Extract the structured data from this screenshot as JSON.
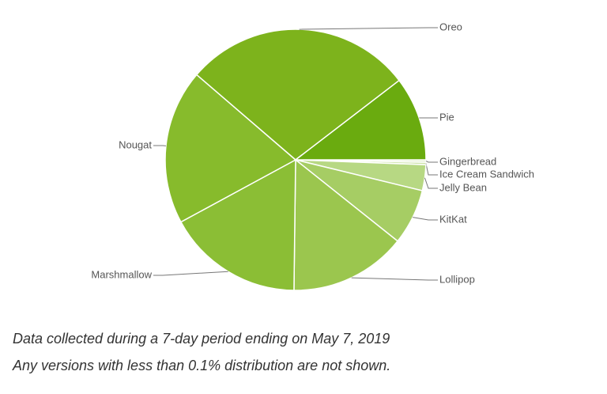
{
  "chart_data": {
    "type": "pie",
    "categories": [
      "Gingerbread",
      "Ice Cream Sandwich",
      "Jelly Bean",
      "KitKat",
      "Lollipop",
      "Marshmallow",
      "Nougat",
      "Oreo",
      "Pie"
    ],
    "values": [
      0.3,
      0.3,
      3.2,
      6.9,
      14.5,
      16.9,
      19.2,
      28.3,
      10.4
    ],
    "colors": [
      "#e3efcf",
      "#cde3a8",
      "#b7d883",
      "#a6cd64",
      "#9bc64e",
      "#8bbe35",
      "#87bb2c",
      "#7db31c",
      "#6aab0f"
    ],
    "caption": [
      "Data collected during a 7-day period ending on May 7, 2019",
      "Any versions with less than 0.1% distribution are not shown."
    ]
  }
}
